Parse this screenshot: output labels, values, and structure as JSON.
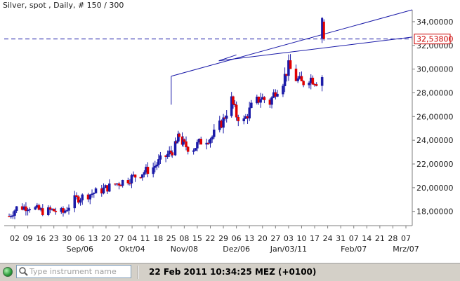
{
  "window": {
    "title": "Silver, spot , Daily, # 150 / 300"
  },
  "chart_data": {
    "type": "candlestick",
    "title": "Silver, spot , Daily, # 150 / 300",
    "up_color": "#1a1aa8",
    "down_color": "#e00000",
    "ylim": [
      16.8,
      35.0
    ],
    "y_ticks": [
      18,
      20,
      22,
      24,
      26,
      28,
      30,
      32,
      34
    ],
    "y_tick_labels": [
      "18,00000",
      "20,00000",
      "22,00000",
      "24,00000",
      "26,00000",
      "28,00000",
      "30,00000",
      "32,00000",
      "34,00000"
    ],
    "x_tick_labels": [
      "02",
      "09",
      "16",
      "23",
      "30",
      "06",
      "13",
      "20",
      "27",
      "04",
      "11",
      "18",
      "25",
      "08",
      "15",
      "22",
      "29",
      "06",
      "13",
      "20",
      "27",
      "03",
      "10",
      "17",
      "24",
      "31",
      "07",
      "14",
      "21",
      "28",
      "07"
    ],
    "month_labels": [
      "Sep/06",
      "Okt/04",
      "Nov/08",
      "Dez/06",
      "Jan/03/11",
      "Feb/07",
      "Mrz/07"
    ],
    "current_price": 32.538,
    "current_price_label": "32,53800",
    "reference_line": 32.538,
    "x_start": "2010-08-30",
    "x_end": "2011-03-10",
    "price_path": [
      [
        "2010-08-30",
        17.6
      ],
      [
        "2010-09-03",
        18.3
      ],
      [
        "2010-09-10",
        18.4
      ],
      [
        "2010-09-17",
        18.0
      ],
      [
        "2010-09-22",
        18.1
      ],
      [
        "2010-09-28",
        17.9
      ],
      [
        "2010-10-04",
        19.0
      ],
      [
        "2010-10-11",
        19.4
      ],
      [
        "2010-10-18",
        19.8
      ],
      [
        "2010-10-25",
        20.3
      ],
      [
        "2010-11-01",
        20.7
      ],
      [
        "2010-11-08",
        21.2
      ],
      [
        "2010-11-15",
        21.7
      ],
      [
        "2010-11-19",
        22.3
      ],
      [
        "2010-11-24",
        22.9
      ],
      [
        "2010-11-30",
        23.6
      ],
      [
        "2010-12-03",
        24.4
      ],
      [
        "2010-12-07",
        23.7
      ],
      [
        "2010-12-12",
        23.2
      ],
      [
        "2010-12-17",
        23.9
      ],
      [
        "2010-12-23",
        24.3
      ],
      [
        "2010-12-29",
        25.7
      ],
      [
        "2011-01-03",
        27.4
      ],
      [
        "2011-01-06",
        26.1
      ],
      [
        "2011-01-10",
        25.6
      ],
      [
        "2011-01-14",
        26.8
      ],
      [
        "2011-01-19",
        27.6
      ],
      [
        "2011-01-24",
        27.2
      ],
      [
        "2011-01-27",
        28.2
      ],
      [
        "2011-01-31",
        29.0
      ],
      [
        "2011-02-03",
        30.2
      ],
      [
        "2011-02-07",
        29.2
      ],
      [
        "2011-02-10",
        28.8
      ],
      [
        "2011-02-14",
        29.3
      ],
      [
        "2011-02-18",
        29.0
      ],
      [
        "2011-02-24",
        29.8
      ],
      [
        "2011-02-28",
        30.6
      ],
      [
        "2011-03-03",
        30.9
      ],
      [
        "2011-03-07",
        29.6
      ],
      [
        "2011-03-11",
        28.6
      ]
    ],
    "price_path_note_hidden": "",
    "trendlines": [
      {
        "from": [
          "2010-11-25",
          29.4
        ],
        "to": [
          "2011-03-10",
          35.0
        ]
      },
      {
        "from": [
          "2011-01-05",
          30.6
        ],
        "to": [
          "2011-03-10",
          32.6
        ]
      },
      {
        "from": [
          "2010-11-25",
          29.4
        ],
        "to": [
          "2010-11-25",
          27.0
        ]
      }
    ]
  },
  "statusbar": {
    "search_placeholder": "Type instrument name",
    "datetime": "22 Feb 2011 10:34:25  MEZ (+0100)"
  },
  "colors": {
    "axis": "#7f7f7f",
    "trendline": "#1a1aa8",
    "dash": "#1a1aa8"
  }
}
